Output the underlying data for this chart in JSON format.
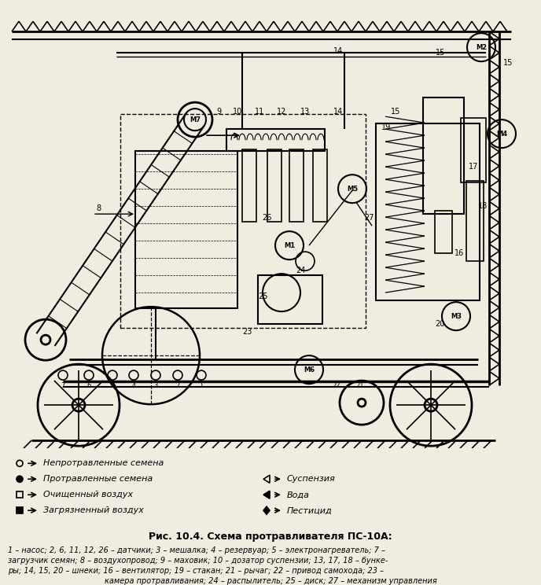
{
  "title": "Рис. 10.4. Схема протравливателя ПС-10А:",
  "caption_line1": "1 – насос; 2, 6, 11, 12, 26 – датчики; 3 – мешалка; 4 – резервуар; 5 – электронагреватель; 7 –",
  "caption_line2": "загрузчик семян; 8 – воздухопровод; 9 – маховик; 10 – дозатор суспензии; 13, 17, 18 – бунке-",
  "caption_line3": "ры; 14, 15, 20 – шнеки; 16 – вентилятор; 19 – стакан; 21 – рычаг; 22 – привод самохода; 23 –",
  "caption_line4": "камера протравливания; 24 – распылитель; 25 – диск; 27 – механизм управления",
  "bg_color": "#f0ece0",
  "line_color": "#000000"
}
